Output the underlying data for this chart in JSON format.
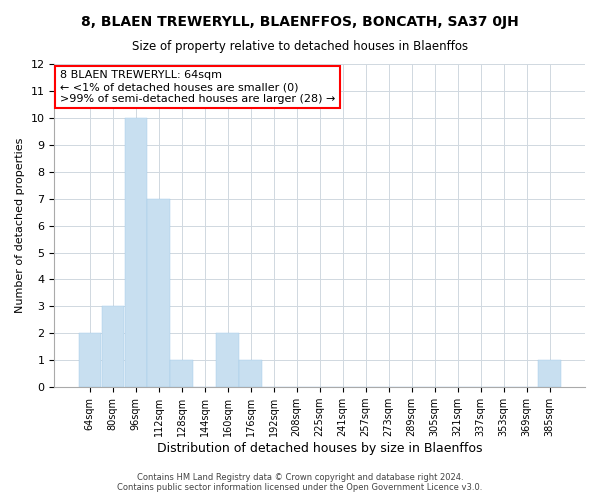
{
  "title": "8, BLAEN TREWERYLL, BLAENFFOS, BONCATH, SA37 0JH",
  "subtitle": "Size of property relative to detached houses in Blaenffos",
  "xlabel": "Distribution of detached houses by size in Blaenffos",
  "ylabel": "Number of detached properties",
  "bins": [
    "64sqm",
    "80sqm",
    "96sqm",
    "112sqm",
    "128sqm",
    "144sqm",
    "160sqm",
    "176sqm",
    "192sqm",
    "208sqm",
    "225sqm",
    "241sqm",
    "257sqm",
    "273sqm",
    "289sqm",
    "305sqm",
    "321sqm",
    "337sqm",
    "353sqm",
    "369sqm",
    "385sqm"
  ],
  "values": [
    2,
    3,
    10,
    7,
    1,
    0,
    2,
    1,
    0,
    0,
    0,
    0,
    0,
    0,
    0,
    0,
    0,
    0,
    0,
    0,
    1
  ],
  "highlight_bin_index": 0,
  "highlight_color": "#cce5f5",
  "normal_color": "#cce5f5",
  "first_bar_color": "#d4e8f5",
  "ylim": [
    0,
    12
  ],
  "yticks": [
    0,
    1,
    2,
    3,
    4,
    5,
    6,
    7,
    8,
    9,
    10,
    11,
    12
  ],
  "annotation_title": "8 BLAEN TREWERYLL: 64sqm",
  "annotation_line1": "← <1% of detached houses are smaller (0)",
  "annotation_line2": ">99% of semi-detached houses are larger (28) →",
  "footer_line1": "Contains HM Land Registry data © Crown copyright and database right 2024.",
  "footer_line2": "Contains public sector information licensed under the Open Government Licence v3.0.",
  "bg_color": "#f0f4f8"
}
